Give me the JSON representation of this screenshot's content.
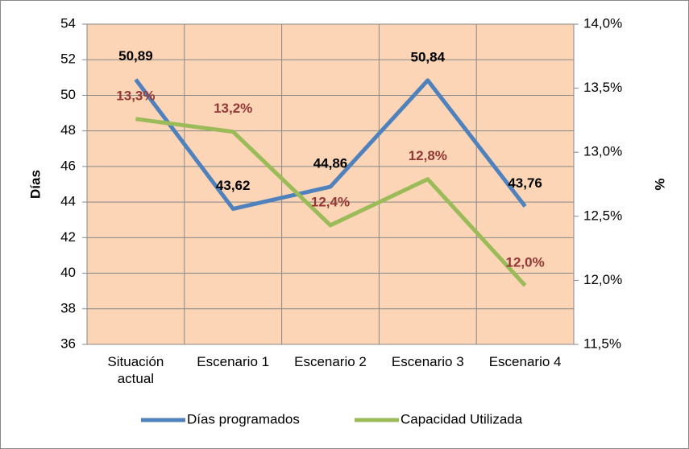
{
  "chart_data": {
    "type": "line",
    "categories": [
      "Situación actual",
      "Escenario 1",
      "Escenario 2",
      "Escenario 3",
      "Escenario 4"
    ],
    "y_label": "Días",
    "y2_label": "%",
    "ylim": [
      36,
      54
    ],
    "yticks": [
      36,
      38,
      40,
      42,
      44,
      46,
      48,
      50,
      52,
      54
    ],
    "y2lim": [
      11.5,
      14.0
    ],
    "y2ticks": [
      {
        "value": 11.5,
        "label": "11,5%"
      },
      {
        "value": 12.0,
        "label": "12,0%"
      },
      {
        "value": 12.5,
        "label": "12,5%"
      },
      {
        "value": 13.0,
        "label": "13,0%"
      },
      {
        "value": 13.5,
        "label": "13,5%"
      },
      {
        "value": 14.0,
        "label": "14,0%"
      }
    ],
    "grid": true,
    "legend": "bottom",
    "background": "#fbd5b5",
    "series": [
      {
        "name": "Días programados",
        "color": "#4f81bd",
        "label_color": "#000000",
        "values": [
          50.89,
          43.62,
          44.86,
          50.84,
          43.76
        ],
        "value_labels": [
          "50,89",
          "43,62",
          "44,86",
          "50,84",
          "43,76"
        ]
      },
      {
        "name": "Capacidad Utilizada",
        "color": "#9bbb59",
        "label_color": "#953735",
        "axis": "y2",
        "values": [
          13.26,
          13.16,
          12.43,
          12.79,
          11.96
        ],
        "value_labels": [
          "13,3%",
          "13,2%",
          "12,4%",
          "12,8%",
          "12,0%"
        ]
      }
    ]
  }
}
